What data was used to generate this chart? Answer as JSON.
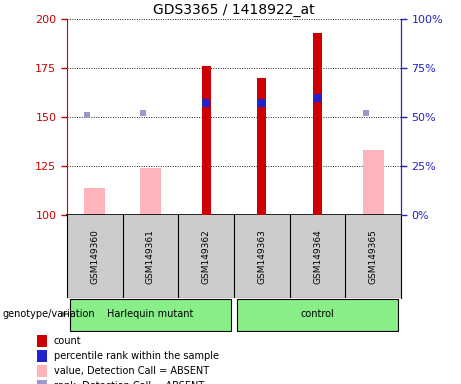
{
  "title": "GDS3365 / 1418922_at",
  "samples": [
    "GSM149360",
    "GSM149361",
    "GSM149362",
    "GSM149363",
    "GSM149364",
    "GSM149365"
  ],
  "ylim_left": [
    100,
    200
  ],
  "ylim_right": [
    0,
    100
  ],
  "yticks_left": [
    100,
    125,
    150,
    175,
    200
  ],
  "yticks_right": [
    0,
    25,
    50,
    75,
    100
  ],
  "count_values": [
    null,
    null,
    176,
    170,
    193,
    null
  ],
  "percentile_rank_pct": [
    null,
    null,
    57,
    57,
    60,
    null
  ],
  "absent_value": [
    114,
    124,
    null,
    null,
    null,
    133
  ],
  "absent_rank": [
    151,
    152,
    null,
    null,
    null,
    152
  ],
  "red_color": "#cc0000",
  "blue_color": "#2222cc",
  "pink_color": "#ffb3ba",
  "lightblue_color": "#9999cc",
  "bg_color": "#ffffff",
  "label_bg": "#cccccc",
  "genotype_color": "#88ee88",
  "left_axis_color": "#cc0000",
  "right_axis_color": "#2222cc",
  "harlequin_range": [
    0,
    2
  ],
  "control_range": [
    3,
    5
  ],
  "legend_items": [
    [
      "#cc0000",
      "count"
    ],
    [
      "#2222cc",
      "percentile rank within the sample"
    ],
    [
      "#ffb3ba",
      "value, Detection Call = ABSENT"
    ],
    [
      "#9999cc",
      "rank, Detection Call = ABSENT"
    ]
  ]
}
